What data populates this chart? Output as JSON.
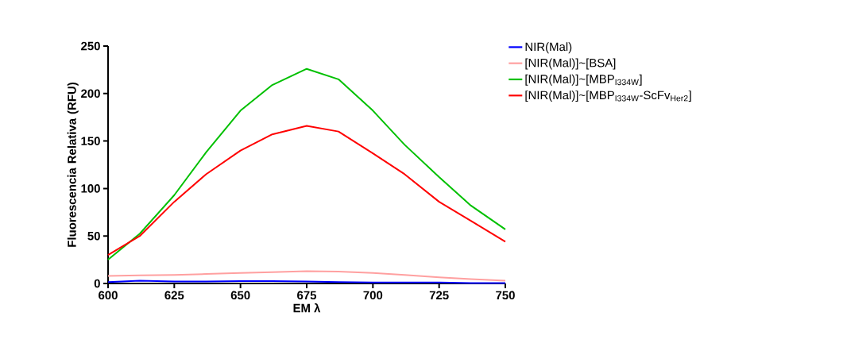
{
  "chart_data": {
    "type": "line",
    "xlabel": "EM λ",
    "ylabel": "Fluorescencia Relativa (RFU)",
    "x": [
      600,
      612,
      625,
      637,
      650,
      662,
      675,
      687,
      700,
      712,
      725,
      737,
      750
    ],
    "series": [
      {
        "name": "NIR(Mal)",
        "color": "#0000ff",
        "values": [
          1.5,
          3,
          2,
          2,
          2.5,
          2.5,
          2,
          1.5,
          1,
          1,
          1,
          0.5,
          0.5
        ]
      },
      {
        "name": "[NIR(Mal)]~[BSA]",
        "color": "#ffa0a0",
        "values": [
          8,
          8.5,
          9,
          10,
          11,
          12,
          13,
          12.5,
          11,
          9,
          6.5,
          4.5,
          3
        ]
      },
      {
        "name": "[NIR(Mal)]~[MBP$_{I334W}$]",
        "color": "#00c000",
        "values": [
          25,
          52.5,
          93,
          138,
          182,
          209,
          226,
          215,
          182,
          146,
          112,
          82,
          57
        ]
      },
      {
        "name": "[NIR(Mal)]~[MBP$_{I334W}$-ScFv$_{Her2}$]",
        "color": "#ff0000",
        "values": [
          30,
          50,
          86,
          115,
          140,
          157,
          166,
          160,
          137,
          115,
          86,
          66,
          44
        ]
      }
    ],
    "xlim": [
      600,
      750
    ],
    "ylim": [
      0,
      250
    ],
    "xticks": [
      600,
      625,
      650,
      675,
      700,
      725,
      750
    ],
    "yticks": [
      0,
      50,
      100,
      150,
      200,
      250
    ],
    "legend": "right"
  }
}
